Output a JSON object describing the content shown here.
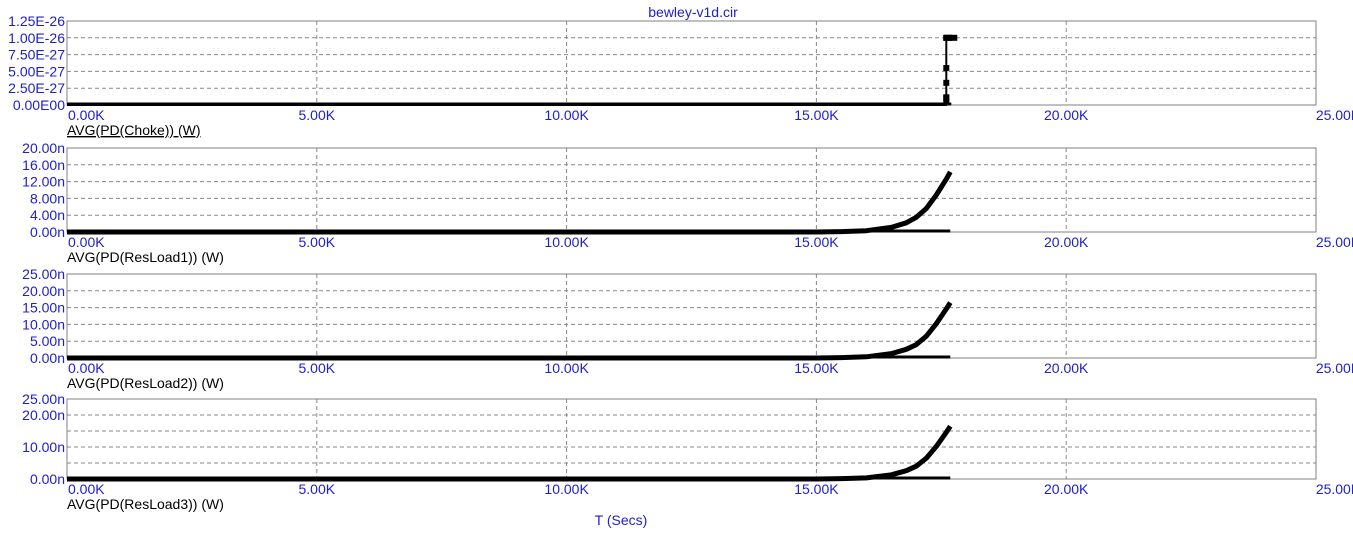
{
  "title": "bewley-v1d.cir",
  "xlabel": "T (Secs)",
  "colors": {
    "axis_text": "#2020c8",
    "trace": "#000000",
    "grid": "#888888",
    "frame": "#808080"
  },
  "chart_data": [
    {
      "type": "line",
      "label": "AVG(PD(Choke)) (W)",
      "label_underlined": true,
      "xlim": [
        0,
        25000
      ],
      "ylim": [
        0,
        1.25e-26
      ],
      "x_ticks": [
        "0.00K",
        "5.00K",
        "10.00K",
        "15.00K",
        "20.00K",
        "25.00K"
      ],
      "y_ticks": [
        "0.00E00",
        "2.50E-27",
        "5.00E-27",
        "7.50E-27",
        "1.00E-26",
        "1.25E-26"
      ],
      "y_grid": [
        0,
        2.5e-27,
        5e-27,
        7.5e-27,
        1e-26,
        1.25e-26
      ],
      "grid": true,
      "x": [
        0,
        17600,
        17600,
        17600,
        17600,
        17600,
        17600,
        17700
      ],
      "y": [
        0,
        0,
        1e-27,
        3.3e-27,
        5.5e-27,
        1e-26,
        1e-26,
        1e-26
      ]
    },
    {
      "type": "line",
      "label": "AVG(PD(ResLoad1)) (W)",
      "xlim": [
        0,
        25000
      ],
      "ylim": [
        0,
        2e-08
      ],
      "x_ticks": [
        "0.00K",
        "5.00K",
        "10.00K",
        "15.00K",
        "20.00K",
        "25.00K"
      ],
      "y_ticks": [
        "0.00n",
        "4.00n",
        "8.00n",
        "12.00n",
        "16.00n",
        "20.00n"
      ],
      "y_grid": [
        0,
        4e-09,
        8e-09,
        1.2e-08,
        1.6e-08,
        2e-08
      ],
      "grid": true,
      "x": [
        0,
        15000,
        15500,
        16000,
        16500,
        16800,
        17000,
        17200,
        17400,
        17600,
        17680
      ],
      "y": [
        0,
        0,
        1e-10,
        3e-10,
        1.1e-09,
        2.2e-09,
        3.5e-09,
        5.6e-09,
        8.8e-09,
        1.26e-08,
        1.43e-08
      ]
    },
    {
      "type": "line",
      "label": "AVG(PD(ResLoad2)) (W)",
      "xlim": [
        0,
        25000
      ],
      "ylim": [
        0,
        2.5e-08
      ],
      "x_ticks": [
        "0.00K",
        "5.00K",
        "10.00K",
        "15.00K",
        "20.00K",
        "25.00K"
      ],
      "y_ticks": [
        "0.00n",
        "5.00n",
        "10.00n",
        "15.00n",
        "20.00n",
        "25.00n"
      ],
      "y_grid": [
        0,
        5e-09,
        1e-08,
        1.5e-08,
        2e-08,
        2.5e-08
      ],
      "grid": true,
      "x": [
        0,
        15000,
        15500,
        16000,
        16500,
        16800,
        17000,
        17200,
        17400,
        17600,
        17680
      ],
      "y": [
        0,
        0,
        1.2e-10,
        3.5e-10,
        1.3e-09,
        2.6e-09,
        4e-09,
        6.5e-09,
        1.02e-08,
        1.46e-08,
        1.65e-08
      ]
    },
    {
      "type": "line",
      "label": "AVG(PD(ResLoad3)) (W)",
      "xlim": [
        0,
        25000
      ],
      "ylim": [
        0,
        2.5e-08
      ],
      "x_ticks": [
        "0.00K",
        "5.00K",
        "10.00K",
        "15.00K",
        "20.00K",
        "25.00K"
      ],
      "y_ticks": [
        "0.00n",
        "",
        "10.00n",
        "",
        "20.00n",
        "25.00n"
      ],
      "y_grid": [
        0,
        5e-09,
        1e-08,
        1.5e-08,
        2e-08,
        2.5e-08
      ],
      "grid": true,
      "x": [
        0,
        15000,
        15500,
        16000,
        16500,
        16800,
        17000,
        17200,
        17400,
        17600,
        17680
      ],
      "y": [
        0,
        0,
        1.2e-10,
        3.5e-10,
        1.3e-09,
        2.6e-09,
        4e-09,
        6.5e-09,
        1.02e-08,
        1.46e-08,
        1.65e-08
      ]
    }
  ]
}
